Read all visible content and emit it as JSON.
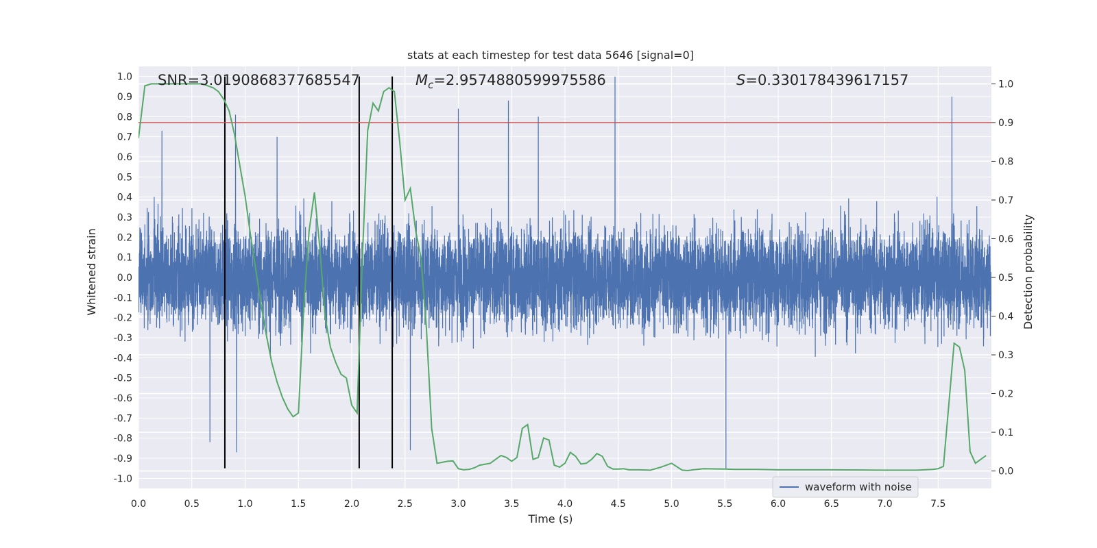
{
  "chart_data": {
    "type": "line",
    "title": "stats at each timestep for test data 5646 [signal=0]",
    "xlabel": "Time (s)",
    "ylabel_left": "Whitened strain",
    "ylabel_right": "Detection probability",
    "xlim": [
      0,
      8
    ],
    "ylim_left": [
      -1.05,
      1.05
    ],
    "ylim_right": [
      -0.045,
      1.045
    ],
    "x_ticks": [
      "0.0",
      "0.5",
      "1.0",
      "1.5",
      "2.0",
      "2.5",
      "3.0",
      "3.5",
      "4.0",
      "4.5",
      "5.0",
      "5.5",
      "6.0",
      "6.5",
      "7.0",
      "7.5"
    ],
    "x_tick_values": [
      0,
      0.5,
      1,
      1.5,
      2,
      2.5,
      3,
      3.5,
      4,
      4.5,
      5,
      5.5,
      6,
      6.5,
      7,
      7.5
    ],
    "y_left_ticks": [
      "1.0",
      "0.9",
      "0.8",
      "0.7",
      "0.6",
      "0.5",
      "0.4",
      "0.3",
      "0.2",
      "0.1",
      "0.0",
      "-0.1",
      "-0.2",
      "-0.3",
      "-0.4",
      "-0.5",
      "-0.6",
      "-0.7",
      "-0.8",
      "-0.9",
      "-1.0"
    ],
    "y_left_tick_values": [
      1.0,
      0.9,
      0.8,
      0.7,
      0.6,
      0.5,
      0.4,
      0.3,
      0.2,
      0.1,
      0.0,
      -0.1,
      -0.2,
      -0.3,
      -0.4,
      -0.5,
      -0.6,
      -0.7,
      -0.8,
      -0.9,
      -1.0
    ],
    "y_right_ticks": [
      "1.0",
      "0.9",
      "0.8",
      "0.7",
      "0.6",
      "0.5",
      "0.4",
      "0.3",
      "0.2",
      "0.1",
      "0.0"
    ],
    "y_right_tick_values": [
      1.0,
      0.9,
      0.8,
      0.7,
      0.6,
      0.5,
      0.4,
      0.3,
      0.2,
      0.1,
      0.0
    ],
    "grid": true,
    "annotations": {
      "snr": "SNR=3.0190868377685547",
      "mc_symbol": "M",
      "mc_sub": "c",
      "mc_value": "=2.9574880599975586",
      "s_symbol": "S",
      "s_value": "=0.330178439617157"
    },
    "threshold_line": {
      "y_right": 0.9,
      "color": "#c44e52"
    },
    "vertical_lines": {
      "x": [
        0.81,
        2.07,
        2.38
      ],
      "y_range_left": [
        -0.95,
        1.0
      ],
      "color": "#000000"
    },
    "waveform": {
      "name": "waveform with noise",
      "color": "#4c72b0",
      "sample_rate_hz": 1024,
      "duration_s": 8,
      "typical_amplitude": [
        -0.42,
        0.42
      ],
      "peaks": [
        {
          "x": 0.22,
          "y": 0.73
        },
        {
          "x": 0.91,
          "y": 0.81
        },
        {
          "x": 0.92,
          "y": -0.87
        },
        {
          "x": 0.67,
          "y": -0.82
        },
        {
          "x": 3.0,
          "y": 0.84
        },
        {
          "x": 3.47,
          "y": 0.88
        },
        {
          "x": 4.47,
          "y": 1.0
        },
        {
          "x": 5.51,
          "y": -0.95
        },
        {
          "x": 7.63,
          "y": 0.9
        },
        {
          "x": 2.55,
          "y": -0.86
        },
        {
          "x": 3.75,
          "y": 0.8
        },
        {
          "x": 1.3,
          "y": 0.7
        }
      ]
    },
    "series": [
      {
        "name": "detection probability",
        "axis": "right",
        "color": "#55a868",
        "x": [
          0.0,
          0.06,
          0.12,
          0.2,
          0.3,
          0.4,
          0.5,
          0.6,
          0.7,
          0.75,
          0.8,
          0.85,
          0.9,
          0.95,
          1.0,
          1.05,
          1.1,
          1.15,
          1.2,
          1.25,
          1.3,
          1.35,
          1.4,
          1.45,
          1.5,
          1.55,
          1.6,
          1.65,
          1.7,
          1.75,
          1.8,
          1.85,
          1.9,
          1.95,
          2.0,
          2.05,
          2.1,
          2.15,
          2.2,
          2.25,
          2.3,
          2.35,
          2.4,
          2.45,
          2.5,
          2.55,
          2.6,
          2.65,
          2.7,
          2.75,
          2.8,
          2.9,
          2.95,
          3.0,
          3.05,
          3.1,
          3.15,
          3.2,
          3.3,
          3.35,
          3.4,
          3.45,
          3.5,
          3.55,
          3.6,
          3.65,
          3.7,
          3.75,
          3.8,
          3.85,
          3.9,
          3.95,
          4.0,
          4.05,
          4.1,
          4.15,
          4.2,
          4.25,
          4.3,
          4.35,
          4.4,
          4.45,
          4.5,
          4.55,
          4.6,
          4.7,
          4.8,
          4.9,
          5.0,
          5.1,
          5.15,
          5.2,
          5.3,
          5.5,
          5.6,
          5.8,
          6.0,
          6.5,
          7.0,
          7.3,
          7.45,
          7.5,
          7.55,
          7.6,
          7.65,
          7.7,
          7.75,
          7.8,
          7.85,
          7.9,
          7.95
        ],
        "y": [
          0.86,
          0.995,
          1.0,
          1.0,
          1.0,
          1.0,
          1.0,
          1.0,
          0.99,
          0.98,
          0.96,
          0.93,
          0.87,
          0.79,
          0.71,
          0.61,
          0.52,
          0.43,
          0.35,
          0.28,
          0.23,
          0.19,
          0.16,
          0.14,
          0.15,
          0.42,
          0.62,
          0.72,
          0.58,
          0.4,
          0.32,
          0.28,
          0.25,
          0.24,
          0.17,
          0.15,
          0.55,
          0.88,
          0.95,
          0.93,
          0.98,
          0.99,
          0.98,
          0.85,
          0.7,
          0.73,
          0.62,
          0.55,
          0.37,
          0.11,
          0.02,
          0.025,
          0.026,
          0.006,
          0.003,
          0.004,
          0.008,
          0.015,
          0.02,
          0.03,
          0.04,
          0.035,
          0.025,
          0.035,
          0.11,
          0.12,
          0.03,
          0.035,
          0.085,
          0.08,
          0.015,
          0.01,
          0.02,
          0.048,
          0.038,
          0.018,
          0.02,
          0.03,
          0.045,
          0.038,
          0.012,
          0.005,
          0.005,
          0.006,
          0.003,
          0.003,
          0.002,
          0.01,
          0.02,
          0.002,
          0.001,
          0.003,
          0.006,
          0.005,
          0.004,
          0.004,
          0.003,
          0.003,
          0.002,
          0.002,
          0.004,
          0.006,
          0.012,
          0.17,
          0.33,
          0.32,
          0.26,
          0.05,
          0.02,
          0.03,
          0.04
        ]
      }
    ],
    "legend": {
      "entries": [
        "waveform with noise"
      ],
      "placement": "lower-right"
    }
  },
  "colors": {
    "axes_bg": "#eaeaf2",
    "grid": "#ffffff",
    "waveform": "#4c72b0",
    "probability": "#55a868",
    "threshold": "#c44e52",
    "vlines": "#000000"
  }
}
